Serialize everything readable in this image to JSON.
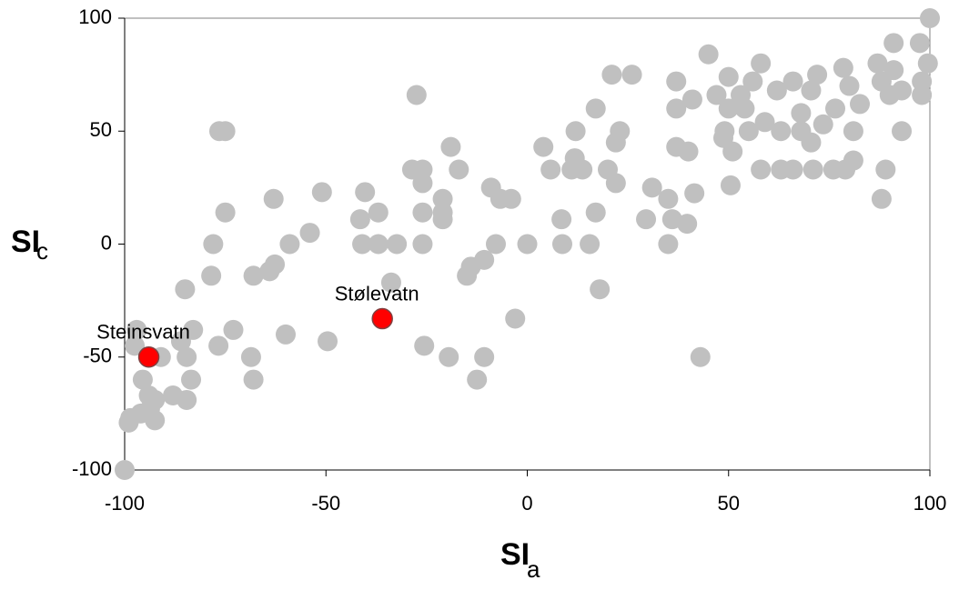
{
  "chart_data": {
    "type": "scatter",
    "xlabel": "SI",
    "xlabel_subscript": "a",
    "ylabel": "SI",
    "ylabel_subscript": "c",
    "xlim": [
      -100,
      100
    ],
    "ylim": [
      -100,
      100
    ],
    "xticks": [
      -100,
      -50,
      0,
      50,
      100
    ],
    "yticks": [
      -100,
      -50,
      0,
      50,
      100
    ],
    "series": [
      {
        "color": "#c0c0c0",
        "x": [
          100,
          97.5,
          99.5,
          98,
          98,
          91,
          91,
          93,
          87,
          88,
          90,
          93,
          89,
          88,
          78.5,
          80,
          82.6,
          81,
          81,
          79,
          76,
          71,
          76.5,
          72,
          70.5,
          68,
          68,
          70.5,
          73.5,
          66,
          63,
          62,
          66,
          63,
          59,
          58,
          56,
          58,
          55,
          51,
          50,
          54,
          50,
          53,
          49,
          47,
          50.5,
          48.7,
          45,
          41.5,
          41,
          40,
          37,
          37,
          37,
          39.7,
          36,
          35,
          35,
          31,
          29.5,
          26,
          21,
          23,
          22,
          22,
          20,
          17,
          17,
          18,
          15.5,
          13.7,
          12,
          11.8,
          11,
          8.7,
          8.5,
          5.8,
          4,
          0,
          -4,
          -6.7,
          -9,
          -7.8,
          -10.7,
          -14,
          -15,
          -10.7,
          -12.5,
          -3,
          -19.5,
          -21,
          -21,
          -21,
          -19,
          -17,
          -25.6,
          -26,
          -26,
          -26,
          -26,
          -28.6,
          -27.5,
          -32.4,
          -33.8,
          -37,
          -37,
          -41,
          -40.3,
          -41.5,
          -49.6,
          -51,
          -54,
          -59,
          -60,
          -63,
          -62.7,
          -64,
          -68,
          -68.6,
          -68,
          -73,
          -75,
          -75,
          -76.5,
          -78,
          -78.5,
          -76.7,
          -83,
          -84.6,
          -86,
          -85,
          -83.5,
          -84.6,
          -88,
          -91,
          -97.5,
          -97,
          -95.5,
          -94,
          -93.7,
          -92.5,
          -92.5,
          -96,
          -99,
          -98.6,
          -100,
          43
        ],
        "y": [
          100,
          89,
          80,
          72,
          66,
          89,
          77,
          68,
          80,
          72,
          66,
          50,
          33,
          20,
          78,
          70,
          62,
          50,
          37,
          33,
          33,
          33,
          60,
          75,
          68,
          58,
          50,
          45,
          53,
          33,
          33,
          68,
          72,
          50,
          54,
          80,
          72,
          33,
          50,
          41,
          60,
          60,
          74,
          66,
          50,
          66,
          26,
          47,
          84,
          22.5,
          64,
          41,
          72,
          60,
          43,
          9,
          11,
          0,
          20,
          25,
          11,
          75,
          75,
          50,
          45,
          27,
          33,
          60,
          14,
          -20,
          0,
          33,
          50,
          38,
          33,
          0,
          11,
          33,
          43,
          0,
          20,
          20,
          25,
          0,
          -7,
          -10,
          -14,
          -50,
          -60,
          -33,
          -50,
          14,
          11,
          20,
          43,
          33,
          -45,
          0,
          14,
          27,
          33,
          33,
          66,
          0,
          -17,
          0,
          14,
          0,
          23,
          11,
          -43,
          23,
          5,
          0,
          -40,
          20,
          -9,
          -12,
          -14,
          -50,
          -60,
          -38,
          14,
          50,
          50,
          0,
          -14,
          -45,
          -38,
          -50,
          -43,
          -20,
          -60,
          -69,
          -67,
          -50,
          -45,
          -38,
          -60,
          -67,
          -73,
          -69,
          -78,
          -75,
          -79,
          -77,
          -100,
          -50
        ]
      },
      {
        "color": "#ff0000",
        "x": [
          -94,
          -36
        ],
        "y": [
          -50,
          -33
        ],
        "labels": [
          "Steinsvatn",
          "Stølevatn"
        ]
      }
    ]
  }
}
